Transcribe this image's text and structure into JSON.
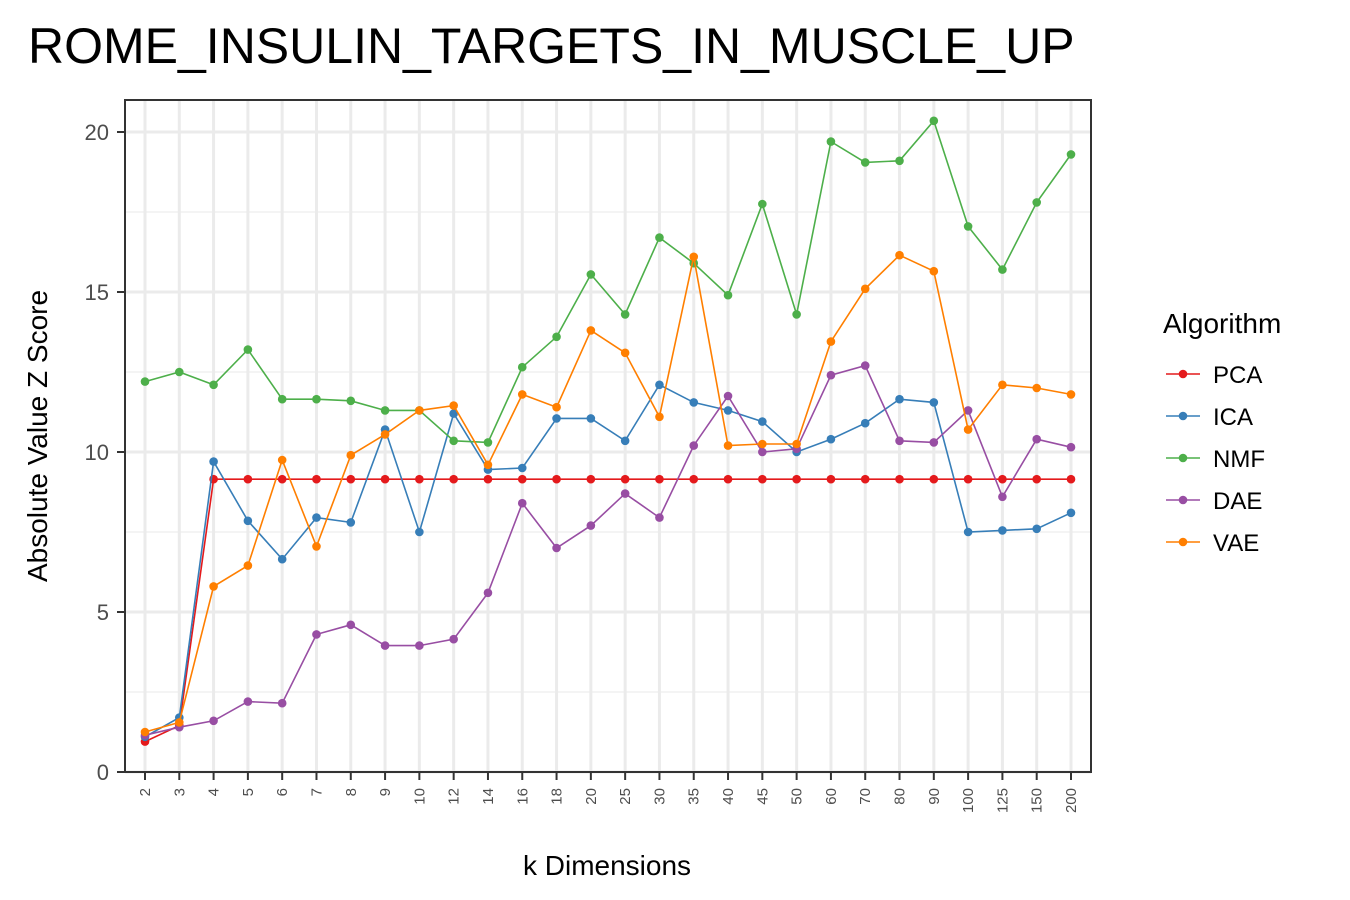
{
  "chart_data": {
    "type": "line",
    "title": "ROME_INSULIN_TARGETS_IN_MUSCLE_UP",
    "xlabel": "k Dimensions",
    "ylabel": "Absolute Value Z Score",
    "ylim": [
      0,
      21
    ],
    "yticks": [
      0,
      5,
      10,
      15,
      20
    ],
    "grid": true,
    "legend_position": "right",
    "legend_title": "Algorithm",
    "categories": [
      "2",
      "3",
      "4",
      "5",
      "6",
      "7",
      "8",
      "9",
      "10",
      "12",
      "14",
      "16",
      "18",
      "20",
      "25",
      "30",
      "35",
      "40",
      "45",
      "50",
      "60",
      "70",
      "80",
      "90",
      "100",
      "125",
      "150",
      "200"
    ],
    "series": [
      {
        "name": "PCA",
        "color": "#e41a1c",
        "values": [
          0.95,
          1.45,
          9.15,
          9.15,
          9.15,
          9.15,
          9.15,
          9.15,
          9.15,
          9.15,
          9.15,
          9.15,
          9.15,
          9.15,
          9.15,
          9.15,
          9.15,
          9.15,
          9.15,
          9.15,
          9.15,
          9.15,
          9.15,
          9.15,
          9.15,
          9.15,
          9.15,
          9.15
        ]
      },
      {
        "name": "ICA",
        "color": "#377eb8",
        "values": [
          1.1,
          1.7,
          9.7,
          7.85,
          6.65,
          7.95,
          7.8,
          10.7,
          7.5,
          11.2,
          9.45,
          9.5,
          11.05,
          11.05,
          10.35,
          12.1,
          11.55,
          11.3,
          10.95,
          10.0,
          10.4,
          10.9,
          11.65,
          11.55,
          7.5,
          7.55,
          7.6,
          8.1
        ]
      },
      {
        "name": "NMF",
        "color": "#4daf4a",
        "values": [
          12.2,
          12.5,
          12.1,
          13.2,
          11.65,
          11.65,
          11.6,
          11.3,
          11.3,
          10.35,
          10.3,
          12.65,
          13.6,
          15.55,
          14.3,
          16.7,
          15.9,
          14.9,
          17.75,
          14.3,
          19.7,
          19.05,
          19.1,
          20.35,
          17.05,
          15.7,
          17.8,
          19.3
        ]
      },
      {
        "name": "DAE",
        "color": "#984ea3",
        "values": [
          1.15,
          1.4,
          1.6,
          2.2,
          2.15,
          4.3,
          4.6,
          3.95,
          3.95,
          4.15,
          5.6,
          8.4,
          7.0,
          7.7,
          8.7,
          7.95,
          10.2,
          11.75,
          10.0,
          10.1,
          12.4,
          12.7,
          10.35,
          10.3,
          11.3,
          8.6,
          10.4,
          10.15
        ]
      },
      {
        "name": "VAE",
        "color": "#ff7f00",
        "values": [
          1.25,
          1.55,
          5.8,
          6.45,
          9.75,
          7.05,
          9.9,
          10.55,
          11.3,
          11.45,
          9.6,
          11.8,
          11.4,
          13.8,
          13.1,
          11.1,
          16.1,
          10.2,
          10.25,
          10.25,
          13.45,
          15.1,
          16.15,
          15.65,
          10.7,
          12.1,
          12.0,
          11.8
        ]
      }
    ]
  }
}
